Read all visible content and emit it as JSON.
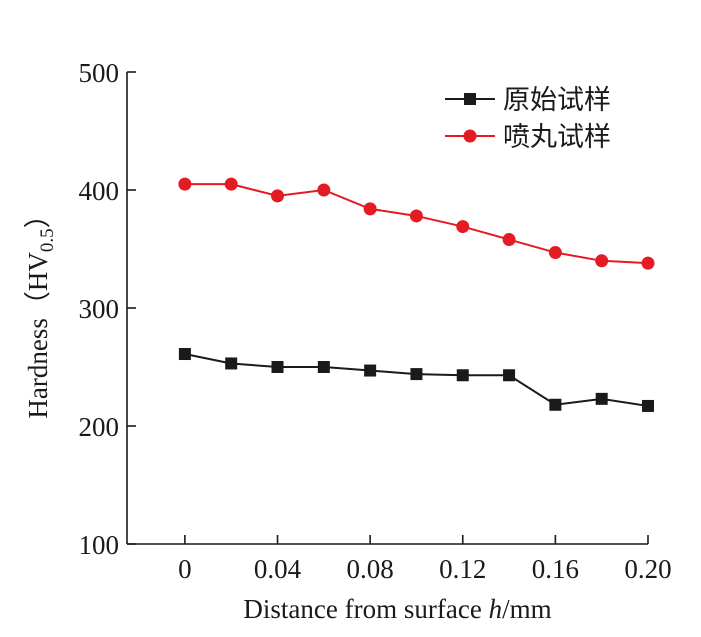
{
  "chart_data": {
    "type": "line",
    "title": "",
    "xlabel": {
      "prefix": "Distance from surface ",
      "var": "h",
      "suffix": "/mm"
    },
    "ylabel": {
      "text": "Hardness（HV",
      "sub": "0.5",
      "end": "）"
    },
    "x": [
      0,
      0.02,
      0.04,
      0.06,
      0.08,
      0.1,
      0.12,
      0.14,
      0.16,
      0.18,
      0.2
    ],
    "xlim": [
      -0.025,
      0.2
    ],
    "ylim": [
      100,
      500
    ],
    "xticks": [
      {
        "value": 0,
        "label": "0"
      },
      {
        "value": 0.04,
        "label": "0.04"
      },
      {
        "value": 0.08,
        "label": "0.08"
      },
      {
        "value": 0.12,
        "label": "0.12"
      },
      {
        "value": 0.16,
        "label": "0.16"
      },
      {
        "value": 0.2,
        "label": "0.20"
      }
    ],
    "yticks": [
      {
        "value": 100,
        "label": "100"
      },
      {
        "value": 200,
        "label": "200"
      },
      {
        "value": 300,
        "label": "300"
      },
      {
        "value": 400,
        "label": "400"
      },
      {
        "value": 500,
        "label": "500"
      }
    ],
    "grid": false,
    "legend_position": "top-right",
    "series": [
      {
        "name": "原始试样",
        "color": "#1a1a1a",
        "marker": "square",
        "values": [
          261,
          253,
          250,
          250,
          247,
          244,
          243,
          243,
          218,
          223,
          217
        ]
      },
      {
        "name": "喷丸试样",
        "color": "#e31b23",
        "marker": "circle",
        "values": [
          405,
          405,
          395,
          400,
          384,
          378,
          369,
          358,
          347,
          340,
          338
        ]
      }
    ]
  }
}
